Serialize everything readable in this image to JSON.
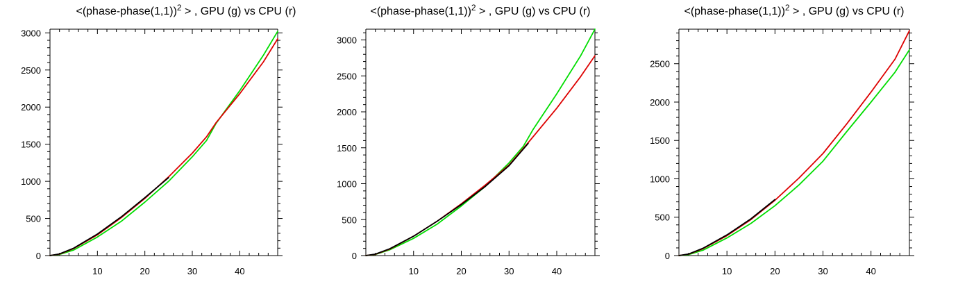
{
  "chart_data": [
    {
      "type": "line",
      "title_parts": {
        "pre": "<(phase-phase(1,1))",
        "sup": "2",
        "post": " > , GPU (g) vs CPU (r)"
      },
      "xlim": [
        0,
        48
      ],
      "ylim": [
        0,
        3050
      ],
      "x_ticks": [
        10,
        20,
        30,
        40
      ],
      "y_ticks": [
        0,
        500,
        1000,
        1500,
        2000,
        2500,
        3000
      ],
      "x_minor_step": 2,
      "y_minor_step": 100,
      "series": [
        {
          "color": "#00dd00",
          "x": [
            0,
            2,
            5,
            10,
            15,
            20,
            25,
            30,
            33,
            35,
            40,
            45,
            48
          ],
          "y": [
            0,
            15,
            75,
            250,
            460,
            720,
            1000,
            1330,
            1550,
            1780,
            2220,
            2700,
            3020
          ]
        },
        {
          "color": "#dd0000",
          "x": [
            0,
            2,
            5,
            10,
            15,
            20,
            25,
            30,
            33,
            35,
            40,
            45,
            48
          ],
          "y": [
            0,
            20,
            95,
            280,
            510,
            770,
            1060,
            1380,
            1600,
            1790,
            2180,
            2610,
            2920
          ]
        },
        {
          "color": "#000000",
          "x": [
            0,
            2,
            5,
            10,
            15,
            20,
            25
          ],
          "y": [
            0,
            22,
            100,
            290,
            520,
            780,
            1050
          ]
        }
      ]
    },
    {
      "type": "line",
      "title_parts": {
        "pre": "<(phase-phase(1,1))",
        "sup": "2",
        "post": " > , GPU (g) vs CPU (r)"
      },
      "xlim": [
        0,
        48
      ],
      "ylim": [
        0,
        3150
      ],
      "x_ticks": [
        10,
        20,
        30,
        40
      ],
      "y_ticks": [
        0,
        500,
        1000,
        1500,
        2000,
        2500,
        3000
      ],
      "x_minor_step": 2,
      "y_minor_step": 100,
      "series": [
        {
          "color": "#00dd00",
          "x": [
            0,
            2,
            5,
            10,
            15,
            20,
            25,
            30,
            33,
            35,
            40,
            45,
            48
          ],
          "y": [
            0,
            15,
            80,
            240,
            440,
            690,
            960,
            1290,
            1520,
            1750,
            2250,
            2780,
            3150
          ]
        },
        {
          "color": "#dd0000",
          "x": [
            0,
            2,
            5,
            10,
            15,
            20,
            25,
            30,
            34,
            40,
            45,
            48
          ],
          "y": [
            0,
            18,
            90,
            270,
            480,
            720,
            980,
            1260,
            1570,
            2050,
            2490,
            2780
          ]
        },
        {
          "color": "#000000",
          "x": [
            0,
            2,
            5,
            10,
            15,
            20,
            25,
            30,
            34
          ],
          "y": [
            0,
            20,
            95,
            270,
            480,
            710,
            960,
            1250,
            1560
          ]
        }
      ]
    },
    {
      "type": "line",
      "title_parts": {
        "pre": "<(phase-phase(1,1))",
        "sup": "2",
        "post": " > , GPU (g) vs CPU (r)"
      },
      "xlim": [
        0,
        48
      ],
      "ylim": [
        0,
        2950
      ],
      "x_ticks": [
        10,
        20,
        30,
        40
      ],
      "y_ticks": [
        0,
        500,
        1000,
        1500,
        2000,
        2500
      ],
      "x_minor_step": 2,
      "y_minor_step": 100,
      "series": [
        {
          "color": "#00dd00",
          "x": [
            0,
            2,
            5,
            10,
            15,
            20,
            25,
            30,
            35,
            40,
            45,
            48
          ],
          "y": [
            0,
            12,
            70,
            230,
            420,
            650,
            920,
            1230,
            1620,
            2000,
            2390,
            2680
          ]
        },
        {
          "color": "#dd0000",
          "x": [
            0,
            2,
            5,
            10,
            15,
            20,
            25,
            30,
            35,
            40,
            45,
            48
          ],
          "y": [
            0,
            18,
            90,
            260,
            470,
            720,
            1010,
            1330,
            1720,
            2130,
            2560,
            2930
          ]
        },
        {
          "color": "#000000",
          "x": [
            0,
            2,
            5,
            10,
            15,
            20
          ],
          "y": [
            0,
            20,
            95,
            270,
            480,
            730
          ]
        }
      ]
    }
  ]
}
